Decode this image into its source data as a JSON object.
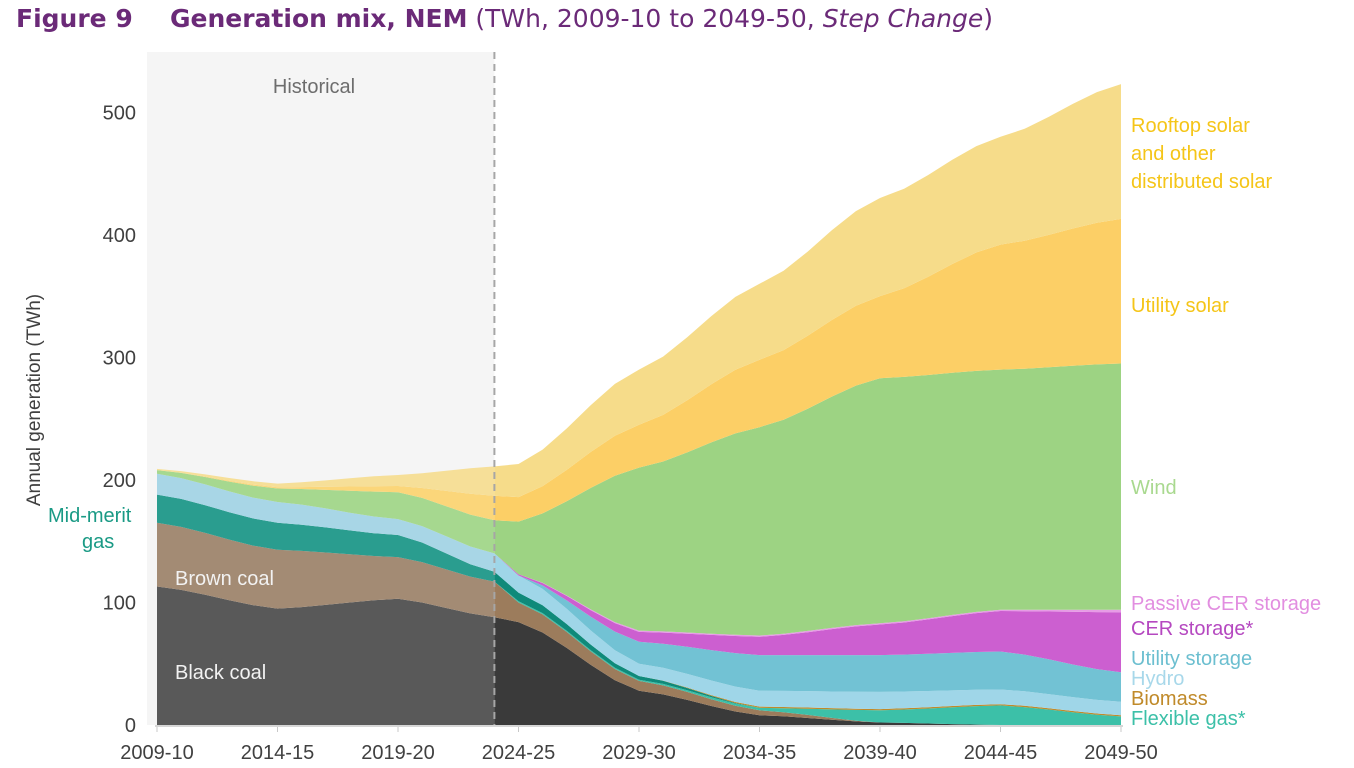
{
  "header": {
    "figure_label": "Figure 9",
    "title": "Generation mix, NEM",
    "subtitle_prefix": " (TWh, 2009-10 to 2049-50, ",
    "subtitle_italic": "Step Change",
    "subtitle_suffix": ")"
  },
  "chart_data": {
    "type": "area",
    "stacked": true,
    "title": "Generation mix, NEM (TWh, 2009-10 to 2049-50, Step Change)",
    "xlabel": "",
    "ylabel": "Annual generation (TWh)",
    "ylim": [
      0,
      520
    ],
    "yticks": [
      0,
      100,
      200,
      300,
      400,
      500
    ],
    "xtick_labels": [
      "2009-10",
      "2014-15",
      "2019-20",
      "2024-25",
      "2029-30",
      "2034-35",
      "2039-40",
      "2044-45",
      "2049-50"
    ],
    "xtick_index": [
      0,
      5,
      10,
      15,
      20,
      25,
      30,
      35,
      40
    ],
    "x_start_year": 2009,
    "n_points": 41,
    "historical_label": "Historical",
    "historical_end_index": 14,
    "grid": false,
    "legend_placement": "right-inline",
    "key_index": [
      0,
      5,
      10,
      14,
      15,
      20,
      25,
      30,
      35,
      40
    ],
    "series": [
      {
        "name": "Black coal",
        "color_hist": "#595959",
        "color": "#3a3a3a",
        "label_color": "#f2f2f2",
        "values": [
          113,
          95,
          103,
          88,
          84,
          28,
          8,
          2,
          0,
          0
        ]
      },
      {
        "name": "Brown coal",
        "color_hist": "#a38b74",
        "color": "#9c7c5c",
        "label_color": "#f2f2f2",
        "values": [
          52,
          48,
          34,
          29,
          16,
          8,
          4,
          0,
          0,
          0
        ]
      },
      {
        "name": "Flexible gas*",
        "color_hist": "#2aa69a",
        "color": "#3cc0a8",
        "label_color": "#3cc0a8",
        "values": [
          0,
          0,
          0,
          0,
          1,
          1,
          2,
          10,
          16,
          7
        ]
      },
      {
        "name": "Mid-merit gas",
        "color_hist": "#2a9d8f",
        "color": "#0f8a7a",
        "label_color": "#1a9a85",
        "values": [
          23,
          22,
          18,
          8,
          7,
          3,
          0,
          0,
          0,
          0
        ]
      },
      {
        "name": "Biomass",
        "color_hist": "#c08a2a",
        "color": "#c08a2a",
        "label_color": "#c08a2a",
        "values": [
          0,
          0,
          0,
          0,
          0,
          0,
          1,
          1,
          1,
          1
        ]
      },
      {
        "name": "Hydro",
        "color_hist": "#a8d6e6",
        "color": "#9fd6e8",
        "label_color": "#a8d8ea",
        "values": [
          17,
          17,
          13,
          15,
          14,
          10,
          13,
          14,
          12,
          11
        ]
      },
      {
        "name": "Utility storage",
        "color_hist": "#7cc4d6",
        "color": "#72c2d4",
        "label_color": "#6cbfd0",
        "values": [
          0,
          0,
          0,
          0,
          0,
          18,
          29,
          30,
          31,
          24
        ]
      },
      {
        "name": "CER storage*",
        "color_hist": "#cc5fd0",
        "color": "#cc5fd0",
        "label_color": "#b548c0",
        "values": [
          0,
          0,
          0,
          0,
          1,
          8,
          15,
          25,
          33,
          49
        ]
      },
      {
        "name": "Passive CER storage",
        "color_hist": "#e79be6",
        "color": "#e79be6",
        "label_color": "#e28ee0",
        "values": [
          0,
          0,
          0,
          0,
          0,
          1,
          1,
          1,
          1,
          2
        ]
      },
      {
        "name": "Wind",
        "color_hist": "#a6d88f",
        "color": "#9dd383",
        "label_color": "#a9d98f",
        "values": [
          3,
          11,
          22,
          27,
          43,
          133,
          170,
          200,
          196,
          201
        ]
      },
      {
        "name": "Utility solar",
        "color_hist": "#fbd67a",
        "color": "#fccf66",
        "label_color": "#f5c518",
        "values": [
          0,
          1,
          5,
          20,
          20,
          35,
          55,
          67,
          102,
          118
        ]
      },
      {
        "name": "Rooftop solar and other distributed solar",
        "color_hist": "#f6df98",
        "color": "#f6dc8a",
        "label_color": "#f5c518",
        "values": [
          1,
          3,
          9,
          24,
          27,
          45,
          62,
          80,
          88,
          110
        ]
      }
    ],
    "annotations": [
      {
        "text": "Historical",
        "position": "top-left-shaded-region"
      },
      {
        "text": "Brown coal",
        "position": "inside"
      },
      {
        "text": "Black coal",
        "position": "inside"
      },
      {
        "text": "Mid-merit gas",
        "position": "left"
      }
    ],
    "right_labels": [
      {
        "lines": [
          "Rooftop solar",
          "and other",
          "distributed solar"
        ],
        "color": "#f5c518"
      },
      {
        "lines": [
          "Utility solar"
        ],
        "color": "#f5c518"
      },
      {
        "lines": [
          "Wind"
        ],
        "color": "#a9d98f"
      },
      {
        "lines": [
          "Passive CER storage"
        ],
        "color": "#e28ee0"
      },
      {
        "lines": [
          "CER storage*"
        ],
        "color": "#b548c0"
      },
      {
        "lines": [
          "Utility storage"
        ],
        "color": "#6cbfd0"
      },
      {
        "lines": [
          "Hydro"
        ],
        "color": "#a8d8ea"
      },
      {
        "lines": [
          "Biomass"
        ],
        "color": "#c08a2a"
      },
      {
        "lines": [
          "Flexible gas*"
        ],
        "color": "#3cc0a8"
      }
    ],
    "left_labels": [
      {
        "lines": [
          "Mid-merit",
          "gas"
        ],
        "color": "#1a9a85"
      }
    ],
    "inner_labels": [
      "Brown coal",
      "Black coal"
    ]
  }
}
